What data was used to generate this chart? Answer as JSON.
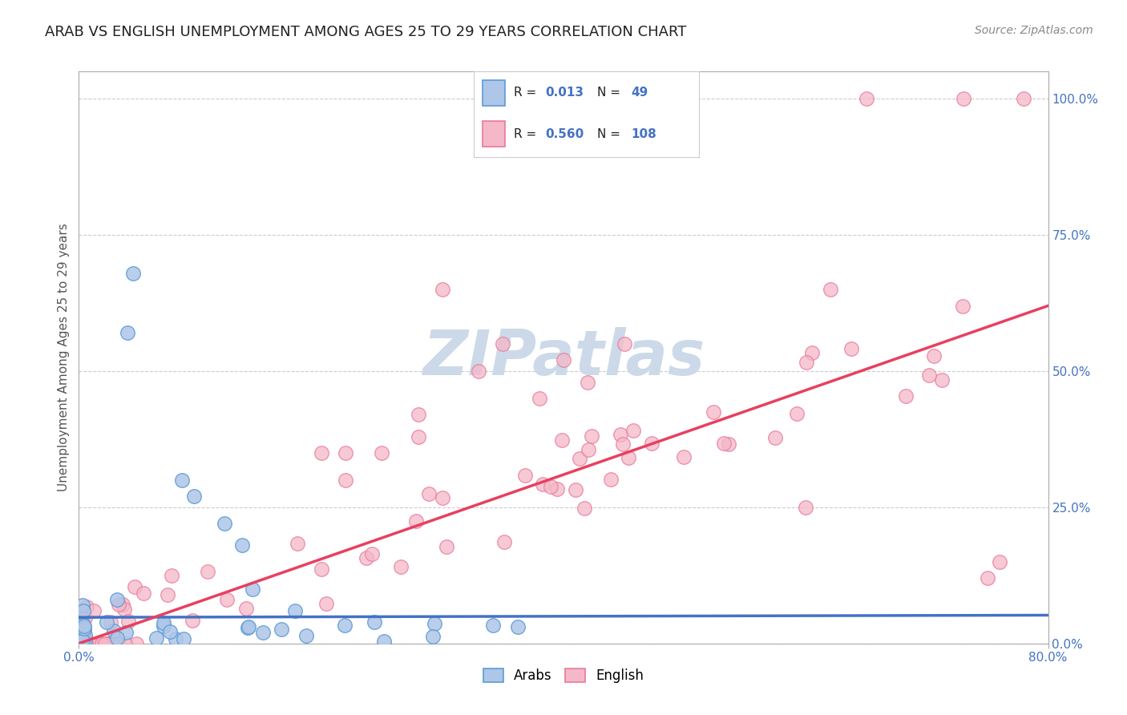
{
  "title": "ARAB VS ENGLISH UNEMPLOYMENT AMONG AGES 25 TO 29 YEARS CORRELATION CHART",
  "source": "Source: ZipAtlas.com",
  "ylabel": "Unemployment Among Ages 25 to 29 years",
  "ytick_labels": [
    "0.0%",
    "25.0%",
    "50.0%",
    "75.0%",
    "100.0%"
  ],
  "ytick_values": [
    0.0,
    0.25,
    0.5,
    0.75,
    1.0
  ],
  "xlim": [
    0.0,
    0.8
  ],
  "ylim": [
    0.0,
    1.05
  ],
  "legend_arab_R": "0.013",
  "legend_arab_N": "49",
  "legend_eng_R": "0.560",
  "legend_eng_N": "108",
  "arab_color": "#aec6e8",
  "arab_edge_color": "#5b9bd5",
  "english_color": "#f4b8c8",
  "english_edge_color": "#e8799a",
  "trend_arab_color": "#4472c4",
  "trend_eng_color": "#e84060",
  "watermark_color": "#ccd9e8",
  "title_fontsize": 13,
  "axis_label_fontsize": 11,
  "tick_fontsize": 11,
  "legend_fontsize": 12,
  "arab_trend_x": [
    0.0,
    0.8
  ],
  "arab_trend_y": [
    0.048,
    0.052
  ],
  "eng_trend_x": [
    0.0,
    0.8
  ],
  "eng_trend_y": [
    0.0,
    0.62
  ]
}
